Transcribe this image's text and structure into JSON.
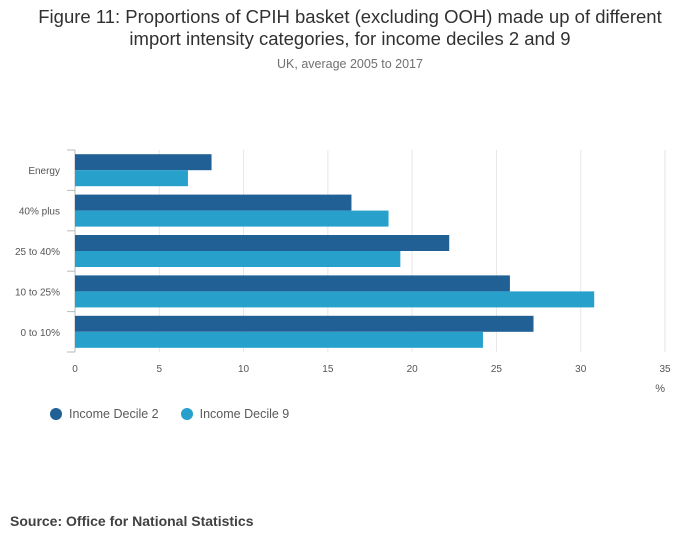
{
  "title_line1": "Figure 11: Proportions of CPIH basket (excluding OOH) made up of different",
  "title_line2": "import intensity categories, for income deciles 2 and 9",
  "subtitle": "UK, average 2005 to 2017",
  "source": "Source: Office for National Statistics",
  "colors": {
    "decile2": "#206095",
    "decile9": "#27a0cc"
  },
  "chart_data": {
    "type": "bar",
    "orientation": "horizontal",
    "categories": [
      "Energy",
      "40% plus",
      "25 to 40%",
      "10 to 25%",
      "0 to 10%"
    ],
    "series": [
      {
        "name": "Income Decile 2",
        "values": [
          8.1,
          16.4,
          22.2,
          25.8,
          27.2
        ]
      },
      {
        "name": "Income Decile 9",
        "values": [
          6.7,
          18.6,
          19.3,
          30.8,
          24.2
        ]
      }
    ],
    "xlim": [
      0,
      35
    ],
    "xticks": [
      "0",
      "5",
      "10",
      "15",
      "20",
      "25",
      "30",
      "35"
    ],
    "xlabel": "%",
    "grid": true,
    "legend_position": "bottom-left"
  }
}
